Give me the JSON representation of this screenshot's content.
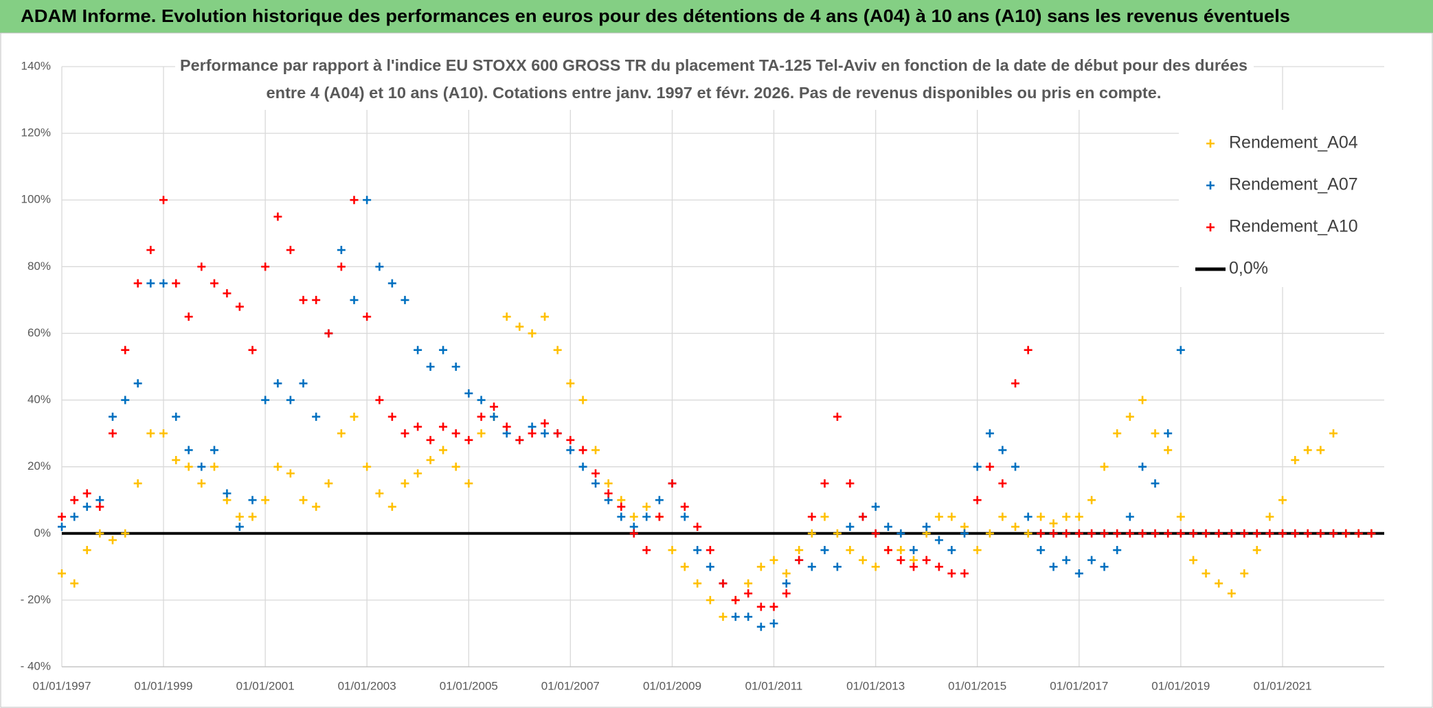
{
  "chart_data": {
    "type": "scatter",
    "title": "ADAM Informe. Evolution historique des performances en euros pour des détentions de 4 ans (A04) à 10 ans (A10) sans les revenus éventuels",
    "subtitle_lines": [
      "Performance par rapport à l'indice EU STOXX 600 GROSS TR  du placement TA-125 Tel-Aviv en fonction de la date de début pour des durées",
      "entre 4 (A04) et 10 ans (A10). Cotations entre janv. 1997 et févr. 2026. Pas de revenus disponibles ou pris en compte."
    ],
    "x": [
      "1997-01-01",
      "1997-04-01",
      "1997-07-01",
      "1997-10-01",
      "1998-01-01",
      "1998-04-01",
      "1998-07-01",
      "1998-10-01",
      "1999-01-01",
      "1999-04-01",
      "1999-07-01",
      "1999-10-01",
      "2000-01-01",
      "2000-04-01",
      "2000-07-01",
      "2000-10-01",
      "2001-01-01",
      "2001-04-01",
      "2001-07-01",
      "2001-10-01",
      "2002-01-01",
      "2002-04-01",
      "2002-07-01",
      "2002-10-01",
      "2003-01-01",
      "2003-04-01",
      "2003-07-01",
      "2003-10-01",
      "2004-01-01",
      "2004-04-01",
      "2004-07-01",
      "2004-10-01",
      "2005-01-01",
      "2005-04-01",
      "2005-07-01",
      "2005-10-01",
      "2006-01-01",
      "2006-04-01",
      "2006-07-01",
      "2006-10-01",
      "2007-01-01",
      "2007-04-01",
      "2007-07-01",
      "2007-10-01",
      "2008-01-01",
      "2008-04-01",
      "2008-07-01",
      "2008-10-01",
      "2009-01-01",
      "2009-04-01",
      "2009-07-01",
      "2009-10-01",
      "2010-01-01",
      "2010-04-01",
      "2010-07-01",
      "2010-10-01",
      "2011-01-01",
      "2011-04-01",
      "2011-07-01",
      "2011-10-01",
      "2012-01-01",
      "2012-04-01",
      "2012-07-01",
      "2012-10-01",
      "2013-01-01",
      "2013-04-01",
      "2013-07-01",
      "2013-10-01",
      "2014-01-01",
      "2014-04-01",
      "2014-07-01",
      "2014-10-01",
      "2015-01-01",
      "2015-04-01",
      "2015-07-01",
      "2015-10-01",
      "2016-01-01",
      "2016-04-01",
      "2016-07-01",
      "2016-10-01",
      "2017-01-01",
      "2017-04-01",
      "2017-07-01",
      "2017-10-01",
      "2018-01-01",
      "2018-04-01",
      "2018-07-01",
      "2018-10-01",
      "2019-01-01",
      "2019-04-01",
      "2019-07-01",
      "2019-10-01",
      "2020-01-01",
      "2020-04-01",
      "2020-07-01",
      "2020-10-01",
      "2021-01-01",
      "2021-04-01",
      "2021-07-01",
      "2021-10-01",
      "2022-01-01",
      "2022-04-01",
      "2022-07-01",
      "2022-10-01"
    ],
    "series": [
      {
        "name": "Rendement_A04",
        "color": "#ffc000",
        "values": [
          -12,
          -15,
          -5,
          0,
          -2,
          0,
          15,
          30,
          30,
          22,
          20,
          15,
          20,
          10,
          5,
          5,
          10,
          20,
          18,
          10,
          8,
          15,
          30,
          35,
          20,
          12,
          8,
          15,
          18,
          22,
          25,
          20,
          15,
          30,
          35,
          65,
          62,
          60,
          65,
          55,
          45,
          40,
          25,
          15,
          10,
          5,
          8,
          5,
          -5,
          -10,
          -15,
          -20,
          -25,
          -20,
          -15,
          -10,
          -8,
          -12,
          -5,
          0,
          5,
          0,
          -5,
          -8,
          -10,
          -5,
          -5,
          -8,
          0,
          5,
          5,
          2,
          -5,
          0,
          5,
          2,
          0,
          5,
          3,
          5,
          5,
          10,
          20,
          30,
          35,
          40,
          30,
          25,
          5,
          -8,
          -12,
          -15,
          -18,
          -12,
          -5,
          5,
          10,
          22,
          25,
          25,
          30,
          0,
          0,
          0
        ]
      },
      {
        "name": "Rendement_A07",
        "color": "#0070c0",
        "values": [
          2,
          5,
          8,
          10,
          35,
          40,
          45,
          75,
          75,
          35,
          25,
          20,
          25,
          12,
          2,
          10,
          40,
          45,
          40,
          45,
          35,
          60,
          85,
          70,
          100,
          80,
          75,
          70,
          55,
          50,
          55,
          50,
          42,
          40,
          35,
          30,
          28,
          32,
          30,
          30,
          25,
          20,
          15,
          10,
          5,
          2,
          5,
          10,
          15,
          5,
          -5,
          -10,
          -15,
          -25,
          -25,
          -28,
          -27,
          -15,
          -8,
          -10,
          -5,
          -10,
          2,
          5,
          8,
          2,
          0,
          -5,
          2,
          -2,
          -5,
          0,
          20,
          30,
          25,
          20,
          5,
          -5,
          -10,
          -8,
          -12,
          -8,
          -10,
          -5,
          5,
          20,
          15,
          30,
          55,
          null,
          null,
          null,
          null,
          null,
          null,
          null,
          null,
          null,
          null,
          null,
          null,
          null,
          null,
          null
        ]
      },
      {
        "name": "Rendement_A10",
        "color": "#ff0000",
        "values": [
          5,
          10,
          12,
          8,
          30,
          55,
          75,
          85,
          100,
          75,
          65,
          80,
          75,
          72,
          68,
          55,
          80,
          95,
          85,
          70,
          70,
          60,
          80,
          100,
          65,
          40,
          35,
          30,
          32,
          28,
          32,
          30,
          28,
          35,
          38,
          32,
          28,
          30,
          33,
          30,
          28,
          25,
          18,
          12,
          8,
          0,
          -5,
          5,
          15,
          8,
          2,
          -5,
          -15,
          -20,
          -18,
          -22,
          -22,
          -18,
          -8,
          5,
          15,
          35,
          15,
          5,
          0,
          -5,
          -8,
          -10,
          -8,
          -10,
          -12,
          -12,
          10,
          20,
          15,
          45,
          55,
          0,
          0,
          0,
          0,
          0,
          0,
          0,
          0,
          0,
          0,
          0,
          0,
          0,
          0,
          0,
          0,
          0,
          0,
          0,
          0,
          0,
          0,
          0,
          0,
          0,
          0,
          0
        ]
      }
    ],
    "reference_line": {
      "name": "0,0%",
      "value": 0,
      "color": "#000000"
    },
    "xlim": [
      "1997-01-01",
      "2023-01-01"
    ],
    "xticks": [
      {
        "value": "1997-01-01",
        "label": "01/01/1997"
      },
      {
        "value": "1999-01-01",
        "label": "01/01/1999"
      },
      {
        "value": "2001-01-01",
        "label": "01/01/2001"
      },
      {
        "value": "2003-01-01",
        "label": "01/01/2003"
      },
      {
        "value": "2005-01-01",
        "label": "01/01/2005"
      },
      {
        "value": "2007-01-01",
        "label": "01/01/2007"
      },
      {
        "value": "2009-01-01",
        "label": "01/01/2009"
      },
      {
        "value": "2011-01-01",
        "label": "01/01/2011"
      },
      {
        "value": "2013-01-01",
        "label": "01/01/2013"
      },
      {
        "value": "2015-01-01",
        "label": "01/01/2015"
      },
      {
        "value": "2017-01-01",
        "label": "01/01/2017"
      },
      {
        "value": "2019-01-01",
        "label": "01/01/2019"
      },
      {
        "value": "2021-01-01",
        "label": "01/01/2021"
      }
    ],
    "ylim": [
      -40,
      140
    ],
    "yticks": [
      {
        "value": 140,
        "label": "140%"
      },
      {
        "value": 120,
        "label": "120%"
      },
      {
        "value": 100,
        "label": "100%"
      },
      {
        "value": 80,
        "label": "80%"
      },
      {
        "value": 60,
        "label": "60%"
      },
      {
        "value": 40,
        "label": "40%"
      },
      {
        "value": 20,
        "label": "20%"
      },
      {
        "value": 0,
        "label": "0%"
      },
      {
        "value": -20,
        "label": "- 20%"
      },
      {
        "value": -40,
        "label": "- 40%"
      }
    ],
    "grid": true
  }
}
